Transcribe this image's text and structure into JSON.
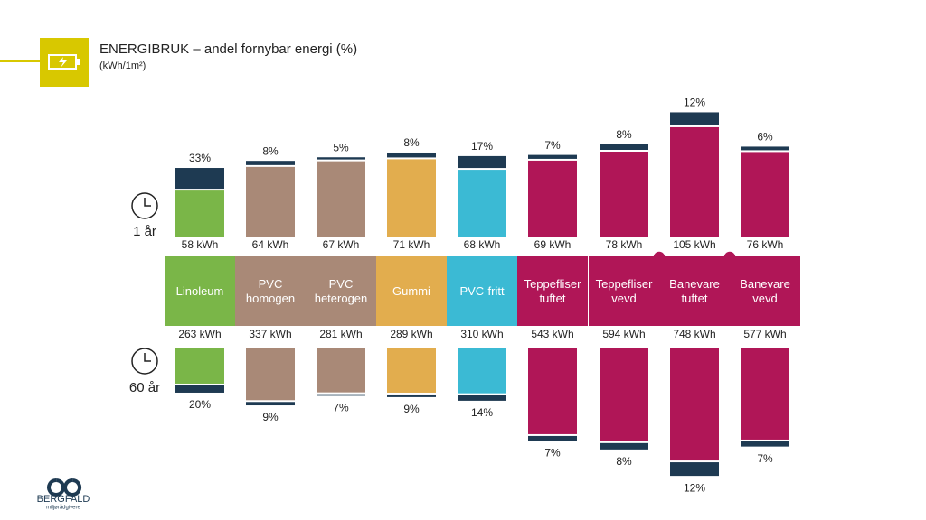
{
  "header": {
    "title": "ENERGIBRUK – andel fornybar energi (%)",
    "subtitle": "(kWh/1m²)"
  },
  "logo": {
    "name": "BERGFALD",
    "tagline": "miljørådgivere"
  },
  "chart_data": [
    {
      "type": "bar",
      "direction": "up",
      "title": "1 år",
      "categories": [
        "Linoleum",
        "PVC\nhomogen",
        "PVC\nheterogen",
        "Gummi",
        "PVC-fritt",
        "Teppefliser\ntuftet",
        "Teppefliser\nvevd",
        "Banevare\ntuftet",
        "Banevare\nvevd"
      ],
      "colors": [
        "#7ab648",
        "#a98977",
        "#a98977",
        "#e2ad4e",
        "#3bbad4",
        "#b01657",
        "#b01657",
        "#b01657",
        "#b01657"
      ],
      "share_color": "#1e3a52",
      "values": [
        58,
        64,
        67,
        71,
        68,
        69,
        78,
        105,
        76
      ],
      "value_labels": [
        "58 kWh",
        "64 kWh",
        "67 kWh",
        "71 kWh",
        "68 kWh",
        "69 kWh",
        "78 kWh",
        "105 kWh",
        "76 kWh"
      ],
      "shares": [
        33,
        8,
        5,
        8,
        17,
        7,
        8,
        12,
        6
      ],
      "share_labels": [
        "33%",
        "8%",
        "5%",
        "8%",
        "17%",
        "7%",
        "8%",
        "12%",
        "6%"
      ]
    },
    {
      "type": "bar",
      "direction": "down",
      "title": "60 år",
      "values": [
        263,
        337,
        281,
        289,
        310,
        543,
        594,
        748,
        577
      ],
      "value_labels": [
        "263 kWh",
        "337 kWh",
        "281 kWh",
        "289 kWh",
        "310 kWh",
        "543 kWh",
        "594 kWh",
        "748 kWh",
        "577 kWh"
      ],
      "shares": [
        20,
        9,
        7,
        9,
        14,
        7,
        8,
        12,
        7
      ],
      "share_labels": [
        "20%",
        "9%",
        "7%",
        "9%",
        "14%",
        "7%",
        "8%",
        "12%",
        "7%"
      ]
    }
  ]
}
